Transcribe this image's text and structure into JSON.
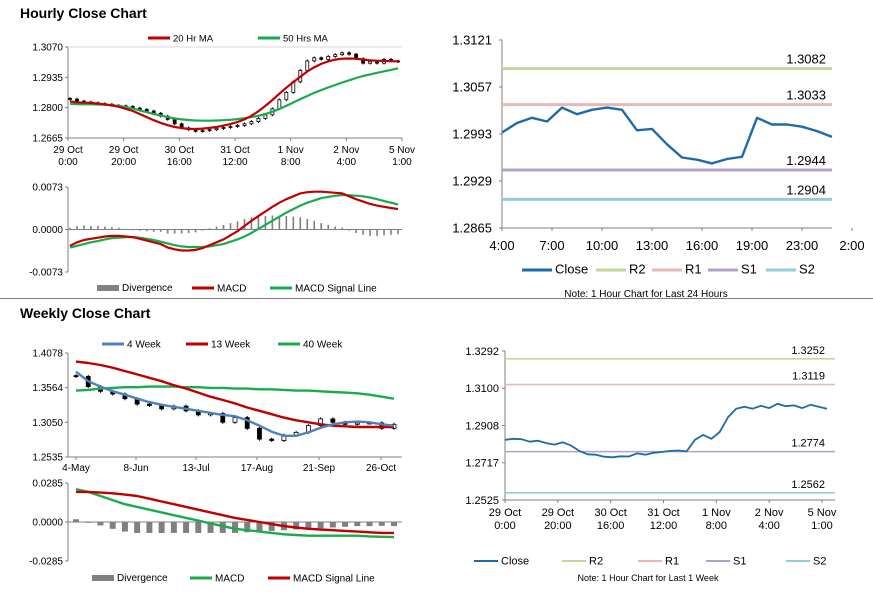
{
  "hourly_title": "Hourly Close Chart",
  "weekly_title": "Weekly Close Chart",
  "colors": {
    "close": "#1f6ba8",
    "ma_red": "#c00000",
    "ma_green": "#1aab4f",
    "r2": "#c3d69b",
    "r1": "#e6b9b8",
    "s1": "#b3a2c7",
    "s2": "#93cddd",
    "divergence": "#808080",
    "blue": "#4f81bd",
    "candle": "#000000"
  },
  "chart_data": [
    {
      "id": "hourly-price",
      "type": "candlestick",
      "legend": [
        "20 Hr MA",
        "50 Hrs MA"
      ],
      "y_ticks": [
        "1.3070",
        "1.2935",
        "1.2800",
        "1.2665"
      ],
      "ylim": [
        1.2665,
        1.307
      ],
      "x_ticks": [
        [
          "29 Oct",
          "0:00"
        ],
        [
          "29 Oct",
          "20:00"
        ],
        [
          "30 Oct",
          "16:00"
        ],
        [
          "31 Oct",
          "12:00"
        ],
        [
          "1 Nov",
          "8:00"
        ],
        [
          "2 Nov",
          "4:00"
        ],
        [
          "5 Nov",
          "1:00"
        ]
      ],
      "close": [
        1.2838,
        1.2829,
        1.2825,
        1.2822,
        1.2818,
        1.2815,
        1.281,
        1.2808,
        1.2805,
        1.2798,
        1.2792,
        1.2785,
        1.2775,
        1.2762,
        1.2748,
        1.2728,
        1.271,
        1.2702,
        1.2695,
        1.2698,
        1.2702,
        1.2708,
        1.2712,
        1.2716,
        1.2721,
        1.2728,
        1.2738,
        1.2752,
        1.2768,
        1.2795,
        1.2835,
        1.2868,
        1.2915,
        1.2966,
        1.3008,
        1.3022,
        1.3015,
        1.3028,
        1.3036,
        1.3044,
        1.3038,
        1.3018,
        1.2998,
        1.3006,
        1.2998,
        1.3015,
        1.3008,
        1.3005
      ],
      "ma20": [
        1.2828,
        1.2824,
        1.2822,
        1.2821,
        1.2818,
        1.2814,
        1.281,
        1.2804,
        1.2795,
        1.2785,
        1.2772,
        1.2758,
        1.2744,
        1.2732,
        1.2722,
        1.2714,
        1.2709,
        1.2706,
        1.2705,
        1.2707,
        1.271,
        1.2714,
        1.272,
        1.2727,
        1.2736,
        1.2748,
        1.2764,
        1.2784,
        1.2808,
        1.2834,
        1.2862,
        1.2889,
        1.2914,
        1.2938,
        1.2961,
        1.298,
        1.2995,
        1.3006,
        1.3014,
        1.3018,
        1.3019,
        1.3018,
        1.3014,
        1.3011,
        1.3009,
        1.3008,
        1.3007,
        1.3006
      ],
      "ma50": [
        1.2817,
        1.2816,
        1.2815,
        1.2815,
        1.2814,
        1.2813,
        1.2811,
        1.2808,
        1.2803,
        1.2796,
        1.2788,
        1.278,
        1.2772,
        1.2765,
        1.2758,
        1.2752,
        1.2748,
        1.2745,
        1.2743,
        1.2742,
        1.2742,
        1.2743,
        1.2744,
        1.2746,
        1.2749,
        1.2753,
        1.2758,
        1.2764,
        1.2772,
        1.2782,
        1.2794,
        1.2808,
        1.2823,
        1.2838,
        1.2852,
        1.2866,
        1.2878,
        1.289,
        1.2901,
        1.2912,
        1.2922,
        1.2932,
        1.2941,
        1.2948,
        1.2955,
        1.2962,
        1.2968,
        1.2975
      ]
    },
    {
      "id": "hourly-macd",
      "type": "line+bar",
      "legend": [
        "Divergence",
        "MACD",
        "MACD Signal Line"
      ],
      "y_ticks": [
        "0.0073",
        "0.0000",
        "-0.0073"
      ],
      "ylim": [
        -0.0073,
        0.0073
      ],
      "macd": [
        -0.0028,
        -0.0022,
        -0.0018,
        -0.0016,
        -0.0014,
        -0.0012,
        -0.0011,
        -0.0011,
        -0.0012,
        -0.0013,
        -0.0016,
        -0.0019,
        -0.0022,
        -0.0025,
        -0.0031,
        -0.0034,
        -0.0036,
        -0.0036,
        -0.0035,
        -0.0032,
        -0.0027,
        -0.0022,
        -0.0017,
        -0.001,
        -0.0003,
        0.0006,
        0.0015,
        0.0023,
        0.0031,
        0.0039,
        0.0046,
        0.0052,
        0.0057,
        0.0062,
        0.0064,
        0.0065,
        0.0065,
        0.0064,
        0.0063,
        0.0062,
        0.0057,
        0.0052,
        0.0048,
        0.0044,
        0.0041,
        0.0039,
        0.0037,
        0.0035
      ],
      "signal": [
        -0.0031,
        -0.0028,
        -0.0025,
        -0.0022,
        -0.002,
        -0.0017,
        -0.0015,
        -0.0014,
        -0.0013,
        -0.0013,
        -0.0014,
        -0.0016,
        -0.0018,
        -0.0021,
        -0.0024,
        -0.0027,
        -0.0029,
        -0.003,
        -0.003,
        -0.003,
        -0.0029,
        -0.0027,
        -0.0025,
        -0.0021,
        -0.0017,
        -0.0012,
        -0.0006,
        0.0001,
        0.0008,
        0.0015,
        0.0022,
        0.0029,
        0.0035,
        0.0041,
        0.0046,
        0.005,
        0.0054,
        0.0056,
        0.0058,
        0.0059,
        0.0059,
        0.0058,
        0.0057,
        0.0055,
        0.0052,
        0.0049,
        0.0046,
        0.0043
      ]
    },
    {
      "id": "hourly-24h",
      "type": "line",
      "y_ticks": [
        "1.3121",
        "1.3057",
        "1.2993",
        "1.2929",
        "1.2865"
      ],
      "ylim": [
        1.2865,
        1.3121
      ],
      "x_ticks": [
        "4:00",
        "7:00",
        "10:00",
        "13:00",
        "16:00",
        "19:00",
        "23:00",
        "2:00"
      ],
      "levels": [
        {
          "name": "R2",
          "value": 1.3082,
          "label": "1.3082"
        },
        {
          "name": "R1",
          "value": 1.3033,
          "label": "1.3033"
        },
        {
          "name": "S1",
          "value": 1.2944,
          "label": "1.2944"
        },
        {
          "name": "S2",
          "value": 1.2904,
          "label": "1.2904"
        }
      ],
      "values": [
        1.2995,
        1.3008,
        1.3015,
        1.301,
        1.3029,
        1.302,
        1.3026,
        1.3029,
        1.3026,
        1.2998,
        1.3,
        1.2979,
        1.2961,
        1.2958,
        1.2953,
        1.2959,
        1.2962,
        1.3015,
        1.3006,
        1.3006,
        1.3003,
        1.2997,
        1.2989
      ],
      "legend": [
        "Close",
        "R2",
        "R1",
        "S1",
        "S2"
      ],
      "note": "Note: 1 Hour Chart for Last 24 Hours"
    },
    {
      "id": "weekly-price",
      "type": "candlestick",
      "legend": [
        "4 Week",
        "13 Week",
        "40 Week"
      ],
      "y_ticks": [
        "1.4078",
        "1.3564",
        "1.3050",
        "1.2535"
      ],
      "ylim": [
        1.2535,
        1.4078
      ],
      "x_ticks": [
        "4-May",
        "8-Jun",
        "13-Jul",
        "17-Aug",
        "21-Sep",
        "26-Oct"
      ],
      "close": [
        1.373,
        1.358,
        1.351,
        1.347,
        1.34,
        1.332,
        1.33,
        1.325,
        1.329,
        1.322,
        1.316,
        1.318,
        1.305,
        1.312,
        1.296,
        1.28,
        1.278,
        1.286,
        1.29,
        1.3,
        1.31,
        1.305,
        1.302,
        1.304,
        1.304,
        1.296,
        1.302
      ],
      "ma4": [
        1.38,
        1.366,
        1.358,
        1.351,
        1.346,
        1.34,
        1.335,
        1.331,
        1.328,
        1.325,
        1.322,
        1.319,
        1.316,
        1.314,
        1.308,
        1.3,
        1.291,
        1.285,
        1.285,
        1.29,
        1.297,
        1.302,
        1.305,
        1.306,
        1.305,
        1.302,
        1.3
      ],
      "ma13": [
        1.395,
        1.393,
        1.39,
        1.386,
        1.381,
        1.376,
        1.371,
        1.366,
        1.36,
        1.355,
        1.349,
        1.343,
        1.338,
        1.333,
        1.327,
        1.322,
        1.317,
        1.312,
        1.308,
        1.305,
        1.302,
        1.3,
        1.299,
        1.298,
        1.298,
        1.298,
        1.298
      ],
      "ma40": [
        1.352,
        1.353,
        1.355,
        1.356,
        1.357,
        1.357,
        1.358,
        1.358,
        1.358,
        1.357,
        1.357,
        1.356,
        1.356,
        1.355,
        1.355,
        1.354,
        1.354,
        1.353,
        1.352,
        1.352,
        1.351,
        1.35,
        1.349,
        1.348,
        1.346,
        1.343,
        1.34
      ]
    },
    {
      "id": "weekly-macd",
      "type": "line+bar",
      "legend": [
        "Divergence",
        "MACD",
        "MACD Signal Line"
      ],
      "y_ticks": [
        "0.0285",
        "0.0000",
        "-0.0285"
      ],
      "ylim": [
        -0.0285,
        0.0285
      ],
      "macd": [
        0.024,
        0.022,
        0.019,
        0.016,
        0.013,
        0.011,
        0.009,
        0.007,
        0.005,
        0.003,
        0.001,
        -0.001,
        -0.003,
        -0.005,
        -0.006,
        -0.007,
        -0.008,
        -0.009,
        -0.0095,
        -0.01,
        -0.01,
        -0.01,
        -0.01,
        -0.01,
        -0.0105,
        -0.0108,
        -0.011
      ],
      "signal": [
        0.022,
        0.022,
        0.0215,
        0.021,
        0.02,
        0.019,
        0.017,
        0.015,
        0.013,
        0.011,
        0.009,
        0.007,
        0.005,
        0.003,
        0.0015,
        0,
        -0.0015,
        -0.003,
        -0.004,
        -0.005,
        -0.0055,
        -0.006,
        -0.0065,
        -0.007,
        -0.0075,
        -0.008,
        -0.008
      ]
    },
    {
      "id": "weekly-hourly",
      "type": "line",
      "y_ticks": [
        "1.3292",
        "1.3100",
        "1.2908",
        "1.2717",
        "1.2525"
      ],
      "ylim": [
        1.2525,
        1.3292
      ],
      "x_ticks": [
        [
          "29 Oct",
          "0:00"
        ],
        [
          "29 Oct",
          "20:00"
        ],
        [
          "30 Oct",
          "16:00"
        ],
        [
          "31 Oct",
          "12:00"
        ],
        [
          "1 Nov",
          "8:00"
        ],
        [
          "2 Nov",
          "4:00"
        ],
        [
          "5 Nov",
          "1:00"
        ]
      ],
      "levels": [
        {
          "name": "R2",
          "value": 1.3252,
          "label": "1.3252"
        },
        {
          "name": "R1",
          "value": 1.3119,
          "label": "1.3119"
        },
        {
          "name": "S1",
          "value": 1.2774,
          "label": "1.2774"
        },
        {
          "name": "S2",
          "value": 1.2562,
          "label": "1.2562"
        }
      ],
      "values": [
        1.2835,
        1.284,
        1.2838,
        1.2825,
        1.283,
        1.2818,
        1.281,
        1.2822,
        1.2805,
        1.2778,
        1.276,
        1.2758,
        1.2748,
        1.2745,
        1.275,
        1.2749,
        1.2765,
        1.2758,
        1.2768,
        1.2772,
        1.2778,
        1.278,
        1.2775,
        1.2835,
        1.286,
        1.284,
        1.2875,
        1.295,
        1.2995,
        1.3005,
        1.2995,
        1.301,
        1.2998,
        1.302,
        1.3008,
        1.3012,
        1.2998,
        1.3015,
        1.3005,
        1.2995
      ],
      "legend": [
        "Close",
        "R2",
        "R1",
        "S1",
        "S2"
      ],
      "note": "Note: 1 Hour Chart for Last 1 Week"
    }
  ]
}
